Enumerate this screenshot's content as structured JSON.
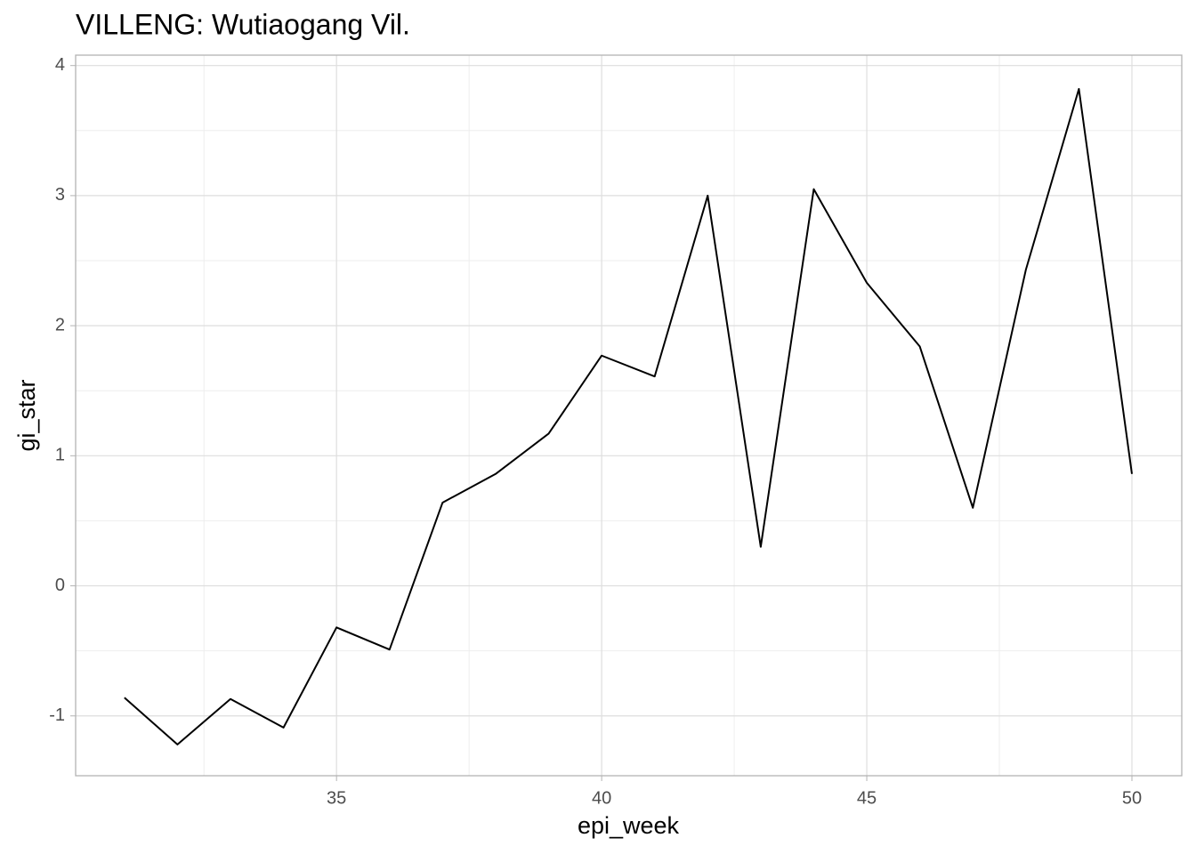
{
  "chart_data": {
    "type": "line",
    "title": "VILLENG: Wutiaogang Vil.",
    "x_label": "epi_week",
    "y_label": "gi_star",
    "x": [
      31,
      32,
      33,
      34,
      35,
      36,
      37,
      38,
      39,
      40,
      41,
      42,
      43,
      44,
      45,
      46,
      47,
      48,
      49,
      50
    ],
    "series": [
      {
        "name": "gi_star",
        "color": "#000000",
        "values": [
          -0.86,
          -1.22,
          -0.87,
          -1.09,
          -0.32,
          -0.49,
          0.64,
          0.86,
          1.17,
          1.77,
          1.61,
          3.0,
          0.3,
          3.05,
          2.33,
          1.84,
          0.6,
          2.43,
          3.82,
          0.86
        ]
      }
    ],
    "xlim": [
      30.08,
      50.94
    ],
    "ylim": [
      -1.46,
      4.08
    ],
    "xticks": [
      35,
      40,
      45,
      50
    ],
    "yticks": [
      -1,
      0,
      1,
      2,
      3,
      4
    ],
    "grid": true
  }
}
